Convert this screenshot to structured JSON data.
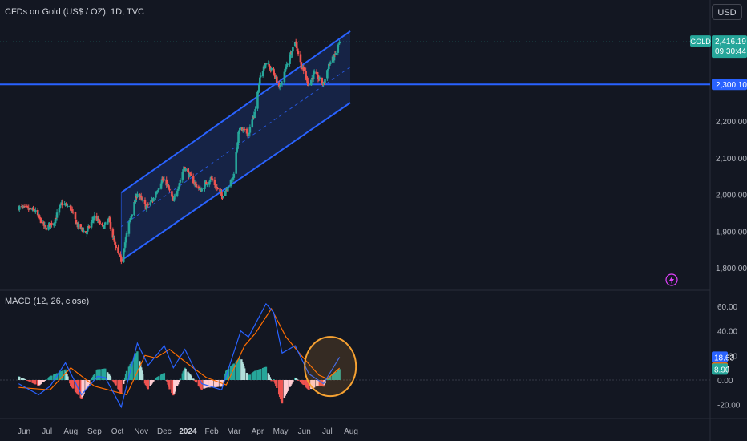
{
  "header": {
    "title": "CFDs on Gold (US$ / OZ), 1D, TVC",
    "currency": "USD"
  },
  "macd_header": "MACD (12, 26, close)",
  "colors": {
    "up": "#26a69a",
    "down": "#ef5350",
    "channel": "#2962ff",
    "macd": "#2962ff",
    "signal": "#ff6d00",
    "highlight": "#f7a232"
  },
  "price_labels": {
    "symbol": "GOLD",
    "last": "2,416.19",
    "countdown": "09:30:44",
    "level": "2,300.10"
  },
  "macd_labels": {
    "macd": "18.63",
    "signal": "9.74",
    "hist": "8.90"
  },
  "chart_data": [
    {
      "type": "candlestick",
      "title": "CFDs on Gold (US$ / OZ), 1D, TVC",
      "y_ticks": [
        "1,800.00",
        "1,900.00",
        "2,000.00",
        "2,100.00",
        "2,200.00"
      ],
      "x_ticks": [
        "Jun",
        "Jul",
        "Aug",
        "Sep",
        "Oct",
        "Nov",
        "Dec",
        "2024",
        "Feb",
        "Mar",
        "Apr",
        "May",
        "Jun",
        "Jul",
        "Aug"
      ],
      "ylim": [
        1770,
        2480
      ],
      "horizontal_level": 2300.1,
      "last_price": 2416.19,
      "channel": {
        "start": [
          "2023-10-06",
          1820,
          2005
        ],
        "end": [
          "2024-07-31",
          2250,
          2445
        ]
      },
      "close_path": [
        [
          "2023-05-25",
          1965
        ],
        [
          "2023-06-05",
          1960
        ],
        [
          "2023-06-15",
          1955
        ],
        [
          "2023-06-29",
          1908
        ],
        [
          "2023-07-10",
          1925
        ],
        [
          "2023-07-20",
          1975
        ],
        [
          "2023-07-31",
          1965
        ],
        [
          "2023-08-10",
          1915
        ],
        [
          "2023-08-21",
          1895
        ],
        [
          "2023-09-01",
          1940
        ],
        [
          "2023-09-12",
          1910
        ],
        [
          "2023-09-20",
          1930
        ],
        [
          "2023-09-29",
          1850
        ],
        [
          "2023-10-06",
          1820
        ],
        [
          "2023-10-16",
          1920
        ],
        [
          "2023-10-27",
          2005
        ],
        [
          "2023-11-07",
          1965
        ],
        [
          "2023-11-16",
          1985
        ],
        [
          "2023-11-28",
          2040
        ],
        [
          "2023-12-04",
          2030
        ],
        [
          "2023-12-13",
          1980
        ],
        [
          "2023-12-27",
          2075
        ],
        [
          "2024-01-05",
          2045
        ],
        [
          "2024-01-17",
          2010
        ],
        [
          "2024-01-31",
          2045
        ],
        [
          "2024-02-14",
          1995
        ],
        [
          "2024-02-29",
          2045
        ],
        [
          "2024-03-08",
          2180
        ],
        [
          "2024-03-20",
          2165
        ],
        [
          "2024-03-29",
          2230
        ],
        [
          "2024-04-05",
          2330
        ],
        [
          "2024-04-12",
          2360
        ],
        [
          "2024-04-22",
          2330
        ],
        [
          "2024-04-30",
          2290
        ],
        [
          "2024-05-10",
          2360
        ],
        [
          "2024-05-20",
          2420
        ],
        [
          "2024-05-28",
          2350
        ],
        [
          "2024-06-07",
          2300
        ],
        [
          "2024-06-14",
          2330
        ],
        [
          "2024-06-26",
          2300
        ],
        [
          "2024-07-03",
          2355
        ],
        [
          "2024-07-10",
          2375
        ],
        [
          "2024-07-17",
          2416
        ]
      ]
    },
    {
      "type": "macd",
      "title": "MACD (12, 26, close)",
      "y_ticks": [
        "60.00",
        "40.00",
        "20.00",
        "0.00",
        "-20.00"
      ],
      "ylim": [
        -30,
        68
      ],
      "macd_path": [
        [
          "2023-05-25",
          -3
        ],
        [
          "2023-06-20",
          -12
        ],
        [
          "2023-07-05",
          -5
        ],
        [
          "2023-07-25",
          14
        ],
        [
          "2023-08-15",
          -12
        ],
        [
          "2023-09-05",
          3
        ],
        [
          "2023-09-15",
          2
        ],
        [
          "2023-10-06",
          -22
        ],
        [
          "2023-10-27",
          30
        ],
        [
          "2023-11-10",
          12
        ],
        [
          "2023-12-01",
          28
        ],
        [
          "2023-12-13",
          10
        ],
        [
          "2023-12-28",
          25
        ],
        [
          "2024-01-19",
          -3
        ],
        [
          "2024-02-14",
          -8
        ],
        [
          "2024-03-10",
          40
        ],
        [
          "2024-03-20",
          35
        ],
        [
          "2024-04-12",
          62
        ],
        [
          "2024-04-22",
          55
        ],
        [
          "2024-05-03",
          22
        ],
        [
          "2024-05-20",
          28
        ],
        [
          "2024-06-07",
          5
        ],
        [
          "2024-06-26",
          -3
        ],
        [
          "2024-07-17",
          18.63
        ]
      ],
      "signal_path": [
        [
          "2023-05-25",
          -6
        ],
        [
          "2023-07-05",
          -8
        ],
        [
          "2023-08-01",
          10
        ],
        [
          "2023-09-01",
          -5
        ],
        [
          "2023-10-13",
          -12
        ],
        [
          "2023-11-06",
          20
        ],
        [
          "2023-11-20",
          18
        ],
        [
          "2023-12-08",
          25
        ],
        [
          "2023-12-28",
          15
        ],
        [
          "2024-01-25",
          2
        ],
        [
          "2024-02-20",
          -4
        ],
        [
          "2024-03-15",
          28
        ],
        [
          "2024-03-29",
          38
        ],
        [
          "2024-04-19",
          58
        ],
        [
          "2024-05-08",
          35
        ],
        [
          "2024-05-28",
          20
        ],
        [
          "2024-06-20",
          4
        ],
        [
          "2024-07-01",
          1
        ],
        [
          "2024-07-17",
          9.74
        ]
      ]
    }
  ]
}
